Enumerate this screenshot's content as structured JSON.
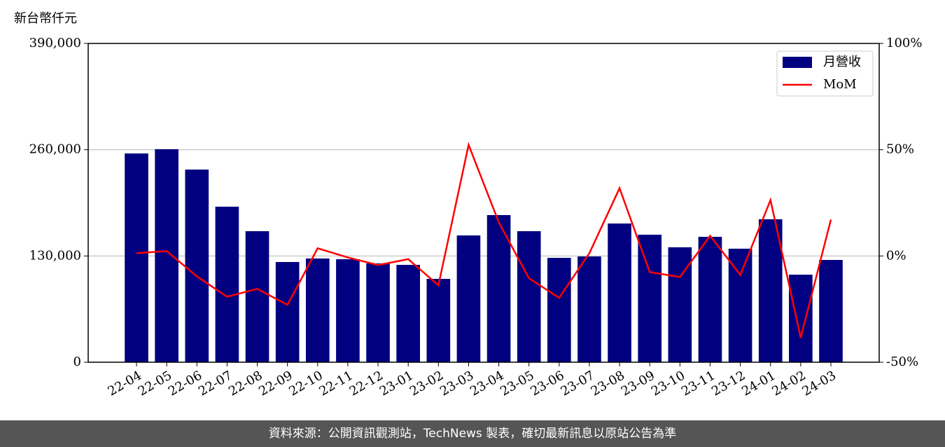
{
  "chart_data": {
    "type": "bar_line",
    "y_label": "新台幣仟元",
    "categories": [
      "22-04",
      "22-05",
      "22-06",
      "22-07",
      "22-08",
      "22-09",
      "22-10",
      "22-11",
      "22-12",
      "23-01",
      "23-02",
      "23-03",
      "23-04",
      "23-05",
      "23-06",
      "23-07",
      "23-08",
      "23-09",
      "23-10",
      "23-11",
      "23-12",
      "24-01",
      "24-02",
      "24-03"
    ],
    "series": [
      {
        "name": "月營收",
        "type": "bar",
        "color": "#000080",
        "values": [
          255400,
          260600,
          235700,
          190300,
          160300,
          122600,
          126900,
          126000,
          120900,
          119100,
          102000,
          155100,
          180000,
          160300,
          127700,
          129400,
          169700,
          156000,
          140600,
          153400,
          138900,
          174900,
          107100,
          125100
        ]
      },
      {
        "name": "MoM",
        "type": "line",
        "axis": "y2",
        "color": "#ff0000",
        "values": [
          1.3,
          2.3,
          -9.6,
          -19.2,
          -15.5,
          -23,
          3.6,
          -0.7,
          -4.3,
          -1.5,
          -13.8,
          52.3,
          15.8,
          -10.5,
          -19.7,
          1.3,
          31.9,
          -7.6,
          -9.9,
          9.5,
          -8.9,
          26.3,
          -38.5,
          17.1
        ]
      }
    ],
    "ylim": [
      0,
      390000
    ],
    "yticks": [
      0,
      {
        "value": 130000,
        "label": "130,000"
      },
      {
        "value": 260000,
        "label": "260,000"
      },
      {
        "value": 390000,
        "label": "390,000"
      }
    ],
    "y2lim": [
      -50,
      100
    ],
    "y2ticks": [
      {
        "value": -50,
        "label": "-50%"
      },
      {
        "value": 0,
        "label": "0%"
      },
      {
        "value": 50,
        "label": "50%"
      },
      {
        "value": 100,
        "label": "100%"
      }
    ],
    "grid": true,
    "legend": "upper right"
  },
  "footer": "資料來源：公開資訊觀測站，TechNews 製表，確切最新訊息以原站公告為準"
}
